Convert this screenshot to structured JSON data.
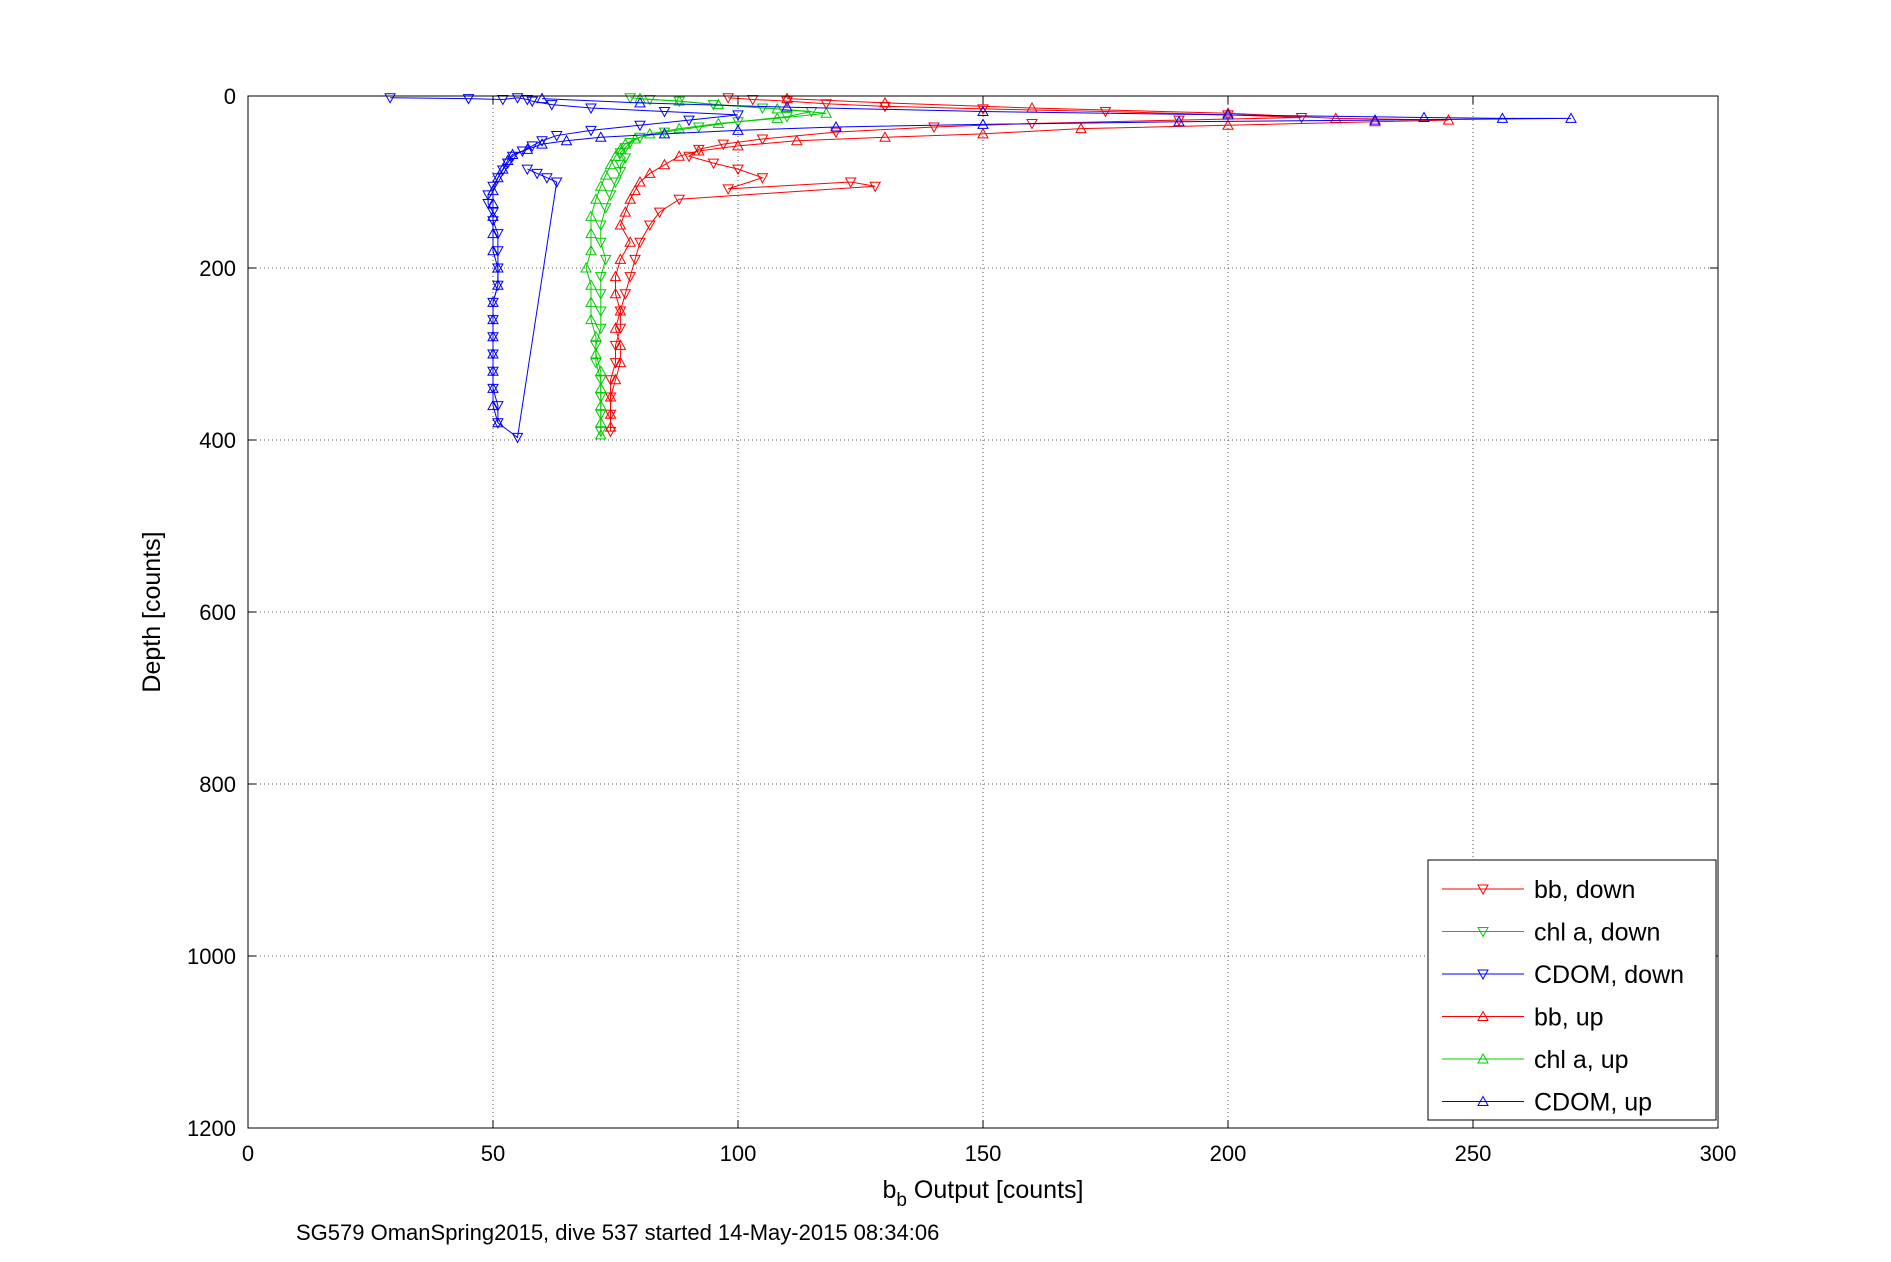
{
  "chart_data": {
    "type": "scatter",
    "xlabel_main": "b",
    "xlabel_sub": "b",
    "xlabel_rest": " Output [counts]",
    "ylabel": "Depth [counts]",
    "caption": "SG579 OmanSpring2015, dive 537 started 14-May-2015 08:34:06",
    "xlim": [
      0,
      300
    ],
    "ylim": [
      1200,
      0
    ],
    "y_reversed": true,
    "grid": true,
    "legend_position": "bottom-right",
    "x_ticks": [
      "0",
      "50",
      "100",
      "150",
      "200",
      "250",
      "300"
    ],
    "y_ticks": [
      "0",
      "200",
      "400",
      "600",
      "800",
      "1000",
      "1200"
    ],
    "series": [
      {
        "name": "bb, down",
        "color": "#ff0000",
        "marker": "triangle-down",
        "points": [
          [
            98,
            2
          ],
          [
            103,
            4
          ],
          [
            110,
            6
          ],
          [
            118,
            9
          ],
          [
            130,
            12
          ],
          [
            150,
            15
          ],
          [
            175,
            18
          ],
          [
            200,
            22
          ],
          [
            215,
            25
          ],
          [
            190,
            28
          ],
          [
            160,
            32
          ],
          [
            140,
            36
          ],
          [
            120,
            42
          ],
          [
            105,
            50
          ],
          [
            97,
            56
          ],
          [
            92,
            62
          ],
          [
            90,
            70
          ],
          [
            95,
            78
          ],
          [
            100,
            85
          ],
          [
            105,
            95
          ],
          [
            98,
            108
          ],
          [
            123,
            100
          ],
          [
            128,
            105
          ],
          [
            88,
            120
          ],
          [
            84,
            135
          ],
          [
            82,
            150
          ],
          [
            80,
            170
          ],
          [
            79,
            190
          ],
          [
            78,
            210
          ],
          [
            77,
            230
          ],
          [
            76,
            250
          ],
          [
            76,
            270
          ],
          [
            75,
            290
          ],
          [
            75,
            310
          ],
          [
            74,
            330
          ],
          [
            74,
            350
          ],
          [
            74,
            370
          ],
          [
            74,
            390
          ]
        ]
      },
      {
        "name": "chl a, down",
        "color": "#00cc00",
        "marker": "triangle-down",
        "points": [
          [
            78,
            2
          ],
          [
            82,
            4
          ],
          [
            88,
            6
          ],
          [
            95,
            10
          ],
          [
            105,
            14
          ],
          [
            115,
            18
          ],
          [
            110,
            24
          ],
          [
            100,
            30
          ],
          [
            92,
            36
          ],
          [
            85,
            42
          ],
          [
            80,
            48
          ],
          [
            78,
            54
          ],
          [
            77,
            60
          ],
          [
            76,
            66
          ],
          [
            77,
            72
          ],
          [
            76,
            80
          ],
          [
            76,
            88
          ],
          [
            75,
            100
          ],
          [
            74,
            115
          ],
          [
            73,
            130
          ],
          [
            72,
            150
          ],
          [
            72,
            170
          ],
          [
            73,
            190
          ],
          [
            72,
            210
          ],
          [
            72,
            230
          ],
          [
            72,
            250
          ],
          [
            72,
            270
          ],
          [
            71,
            290
          ],
          [
            71,
            310
          ],
          [
            72,
            330
          ],
          [
            72,
            350
          ],
          [
            72,
            370
          ],
          [
            72,
            390
          ]
        ]
      },
      {
        "name": "CDOM, down",
        "color": "#0000ff",
        "marker": "triangle-down",
        "points": [
          [
            29,
            2
          ],
          [
            45,
            3
          ],
          [
            52,
            4
          ],
          [
            55,
            2
          ],
          [
            57,
            4
          ],
          [
            58,
            6
          ],
          [
            62,
            10
          ],
          [
            70,
            14
          ],
          [
            85,
            18
          ],
          [
            100,
            22
          ],
          [
            90,
            28
          ],
          [
            80,
            34
          ],
          [
            70,
            40
          ],
          [
            63,
            46
          ],
          [
            60,
            52
          ],
          [
            58,
            58
          ],
          [
            56,
            64
          ],
          [
            54,
            70
          ],
          [
            53,
            78
          ],
          [
            52,
            86
          ],
          [
            51,
            95
          ],
          [
            50,
            105
          ],
          [
            49,
            115
          ],
          [
            49,
            125
          ],
          [
            50,
            135
          ],
          [
            50,
            145
          ],
          [
            51,
            160
          ],
          [
            51,
            180
          ],
          [
            51,
            200
          ],
          [
            51,
            220
          ],
          [
            50,
            240
          ],
          [
            50,
            260
          ],
          [
            50,
            280
          ],
          [
            50,
            300
          ],
          [
            50,
            320
          ],
          [
            50,
            340
          ],
          [
            51,
            360
          ],
          [
            51,
            380
          ],
          [
            55,
            397
          ],
          [
            63,
            100
          ],
          [
            61,
            95
          ],
          [
            59,
            90
          ],
          [
            57,
            85
          ]
        ]
      },
      {
        "name": "bb, up",
        "color": "#ff0000",
        "marker": "triangle-up",
        "points": [
          [
            110,
            3
          ],
          [
            130,
            8
          ],
          [
            160,
            14
          ],
          [
            200,
            20
          ],
          [
            222,
            26
          ],
          [
            245,
            28
          ],
          [
            230,
            30
          ],
          [
            200,
            34
          ],
          [
            170,
            38
          ],
          [
            150,
            44
          ],
          [
            130,
            48
          ],
          [
            112,
            52
          ],
          [
            100,
            58
          ],
          [
            92,
            64
          ],
          [
            88,
            70
          ],
          [
            85,
            80
          ],
          [
            82,
            90
          ],
          [
            80,
            100
          ],
          [
            79,
            110
          ],
          [
            78,
            120
          ],
          [
            77,
            135
          ],
          [
            76,
            150
          ],
          [
            78,
            170
          ],
          [
            76,
            190
          ],
          [
            75,
            210
          ],
          [
            75,
            230
          ],
          [
            76,
            250
          ],
          [
            75,
            270
          ],
          [
            76,
            290
          ],
          [
            76,
            310
          ],
          [
            75,
            330
          ],
          [
            74,
            350
          ],
          [
            74,
            370
          ],
          [
            74,
            385
          ]
        ]
      },
      {
        "name": "chl a, up",
        "color": "#00cc00",
        "marker": "triangle-up",
        "points": [
          [
            80,
            3
          ],
          [
            88,
            6
          ],
          [
            96,
            10
          ],
          [
            108,
            15
          ],
          [
            118,
            20
          ],
          [
            108,
            26
          ],
          [
            96,
            32
          ],
          [
            88,
            38
          ],
          [
            82,
            44
          ],
          [
            79,
            50
          ],
          [
            77,
            56
          ],
          [
            76,
            62
          ],
          [
            75,
            70
          ],
          [
            74,
            80
          ],
          [
            73,
            92
          ],
          [
            72,
            105
          ],
          [
            71,
            120
          ],
          [
            70,
            140
          ],
          [
            70,
            160
          ],
          [
            70,
            180
          ],
          [
            69,
            200
          ],
          [
            70,
            220
          ],
          [
            70,
            240
          ],
          [
            70,
            260
          ],
          [
            71,
            280
          ],
          [
            71,
            300
          ],
          [
            72,
            320
          ],
          [
            72,
            340
          ],
          [
            72,
            360
          ],
          [
            72,
            380
          ],
          [
            72,
            394
          ]
        ]
      },
      {
        "name": "CDOM, up",
        "color": "#0000ff",
        "marker": "triangle-up",
        "points": [
          [
            60,
            3
          ],
          [
            80,
            8
          ],
          [
            110,
            13
          ],
          [
            150,
            18
          ],
          [
            200,
            22
          ],
          [
            240,
            25
          ],
          [
            256,
            26
          ],
          [
            270,
            26
          ],
          [
            230,
            28
          ],
          [
            190,
            30
          ],
          [
            150,
            33
          ],
          [
            120,
            36
          ],
          [
            100,
            40
          ],
          [
            85,
            44
          ],
          [
            72,
            48
          ],
          [
            65,
            52
          ],
          [
            60,
            56
          ],
          [
            57,
            62
          ],
          [
            54,
            68
          ],
          [
            53,
            75
          ],
          [
            52,
            85
          ],
          [
            51,
            95
          ],
          [
            50,
            110
          ],
          [
            50,
            125
          ],
          [
            50,
            140
          ],
          [
            50,
            160
          ],
          [
            50,
            180
          ],
          [
            51,
            200
          ],
          [
            51,
            220
          ],
          [
            50,
            240
          ],
          [
            50,
            260
          ],
          [
            50,
            280
          ],
          [
            50,
            300
          ],
          [
            50,
            320
          ],
          [
            50,
            340
          ],
          [
            50,
            360
          ],
          [
            51,
            380
          ]
        ]
      }
    ]
  }
}
